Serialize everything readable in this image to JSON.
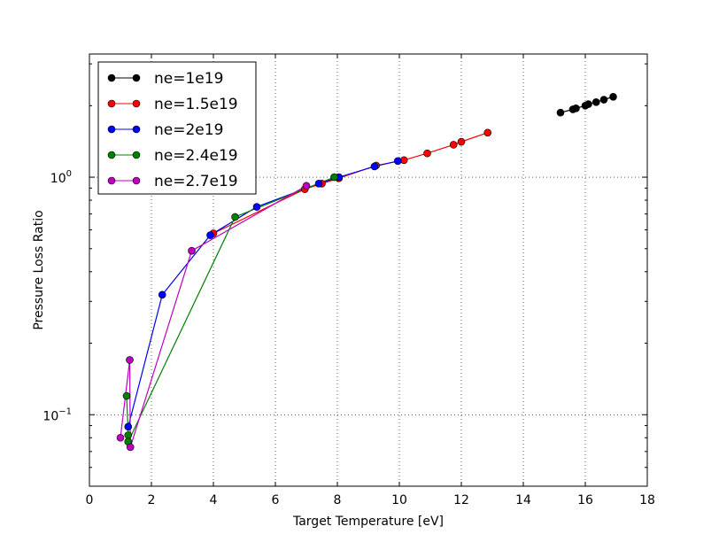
{
  "chart_data": {
    "type": "scatter",
    "title": "",
    "xlabel": "Target Temperature [eV]",
    "ylabel": "Pressure Loss Ratio",
    "xlim": [
      0,
      18
    ],
    "ylim": [
      0.05,
      3.3
    ],
    "yscale": "log",
    "grid": true,
    "legend_position": "top-left",
    "x_ticks": [
      {
        "value": 0,
        "label": "0"
      },
      {
        "value": 2,
        "label": "2"
      },
      {
        "value": 4,
        "label": "4"
      },
      {
        "value": 6,
        "label": "6"
      },
      {
        "value": 8,
        "label": "8"
      },
      {
        "value": 10,
        "label": "10"
      },
      {
        "value": 12,
        "label": "12"
      },
      {
        "value": 14,
        "label": "14"
      },
      {
        "value": 16,
        "label": "16"
      },
      {
        "value": 18,
        "label": "18"
      }
    ],
    "y_ticks": [
      {
        "value": 0.1,
        "mantissa": "10",
        "exponent": "−1"
      },
      {
        "value": 1,
        "mantissa": "10",
        "exponent": "0"
      }
    ],
    "series": [
      {
        "name": "ne=1e19",
        "color": "#000000",
        "points": [
          [
            15.2,
            1.87
          ],
          [
            15.6,
            1.93
          ],
          [
            15.7,
            1.95
          ],
          [
            16.0,
            2.0
          ],
          [
            16.1,
            2.03
          ],
          [
            16.35,
            2.07
          ],
          [
            16.6,
            2.12
          ],
          [
            16.9,
            2.18
          ]
        ]
      },
      {
        "name": "ne=1.5e19",
        "color": "#ff0000",
        "points": [
          [
            4.0,
            0.58
          ],
          [
            6.95,
            0.89
          ],
          [
            7.5,
            0.94
          ],
          [
            8.05,
            0.99
          ],
          [
            9.25,
            1.12
          ],
          [
            10.15,
            1.18
          ],
          [
            10.9,
            1.26
          ],
          [
            11.75,
            1.37
          ],
          [
            12.0,
            1.41
          ],
          [
            12.85,
            1.54
          ]
        ]
      },
      {
        "name": "ne=2e19",
        "color": "#0000ff",
        "points": [
          [
            1.25,
            0.089
          ],
          [
            2.35,
            0.32
          ],
          [
            3.9,
            0.57
          ],
          [
            5.4,
            0.75
          ],
          [
            7.4,
            0.94
          ],
          [
            8.05,
            1.0
          ],
          [
            9.2,
            1.11
          ],
          [
            9.95,
            1.17
          ]
        ]
      },
      {
        "name": "ne=2.4e19",
        "color": "#008000",
        "points": [
          [
            1.2,
            0.12
          ],
          [
            1.25,
            0.082
          ],
          [
            1.25,
            0.077
          ],
          [
            4.7,
            0.68
          ],
          [
            7.9,
            1.0
          ]
        ]
      },
      {
        "name": "ne=2.7e19",
        "color": "#bf00bf",
        "points": [
          [
            1.0,
            0.08
          ],
          [
            1.3,
            0.17
          ],
          [
            1.32,
            0.073
          ],
          [
            3.3,
            0.49
          ],
          [
            7.0,
            0.92
          ]
        ]
      }
    ]
  }
}
